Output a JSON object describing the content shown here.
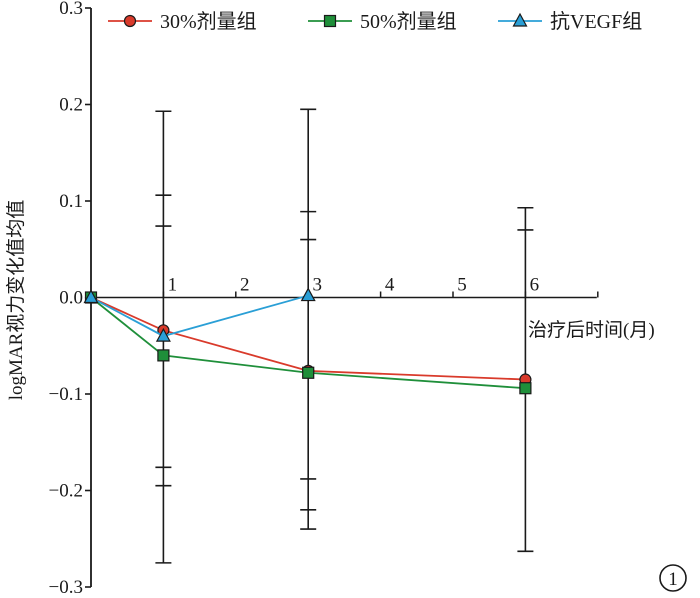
{
  "chart_data": {
    "type": "line",
    "title": "",
    "xlabel": "治疗后时间(月)",
    "ylabel": "logMAR视力变化值均值",
    "x_ticks": [
      1,
      2,
      3,
      4,
      5,
      6
    ],
    "xlim": [
      0,
      7
    ],
    "ylim": [
      -0.3,
      0.3
    ],
    "y_ticks": [
      0.3,
      0.2,
      0.1,
      0.0,
      -0.1,
      -0.2,
      -0.3
    ],
    "y_tick_labels": [
      "0.3",
      "0.2",
      "0.1",
      "0.0",
      "−0.1",
      "−0.2",
      "−0.3"
    ],
    "grid": false,
    "legend_position": "top",
    "panel_label": "1",
    "series": [
      {
        "name": "30%剂量组",
        "color": "#d93a2b",
        "marker": "circle",
        "x": [
          0,
          1,
          3,
          6
        ],
        "y": [
          0,
          -0.034,
          -0.076,
          -0.085
        ]
      },
      {
        "name": "50%剂量组",
        "color": "#1f8f3a",
        "marker": "square",
        "x": [
          0,
          1,
          3,
          6
        ],
        "y": [
          0,
          -0.06,
          -0.078,
          -0.094
        ]
      },
      {
        "name": "抗VEGF组",
        "color": "#2a9fd6",
        "marker": "triangle",
        "x": [
          0,
          1,
          3
        ],
        "y": [
          0,
          -0.04,
          0.002
        ]
      }
    ],
    "error_bars": [
      {
        "x": 1,
        "low": -0.275,
        "high": 0.193,
        "inner_low": -0.195,
        "inner_high": 0.074,
        "mid_high": 0.106,
        "mid_low": -0.176
      },
      {
        "x": 3,
        "low": -0.24,
        "high": 0.195,
        "inner_low": -0.22,
        "inner_high": 0.06,
        "mid_high": 0.089,
        "mid_low": -0.188
      },
      {
        "x": 6,
        "low": -0.263,
        "high": 0.093,
        "inner_high": 0.07
      }
    ]
  }
}
